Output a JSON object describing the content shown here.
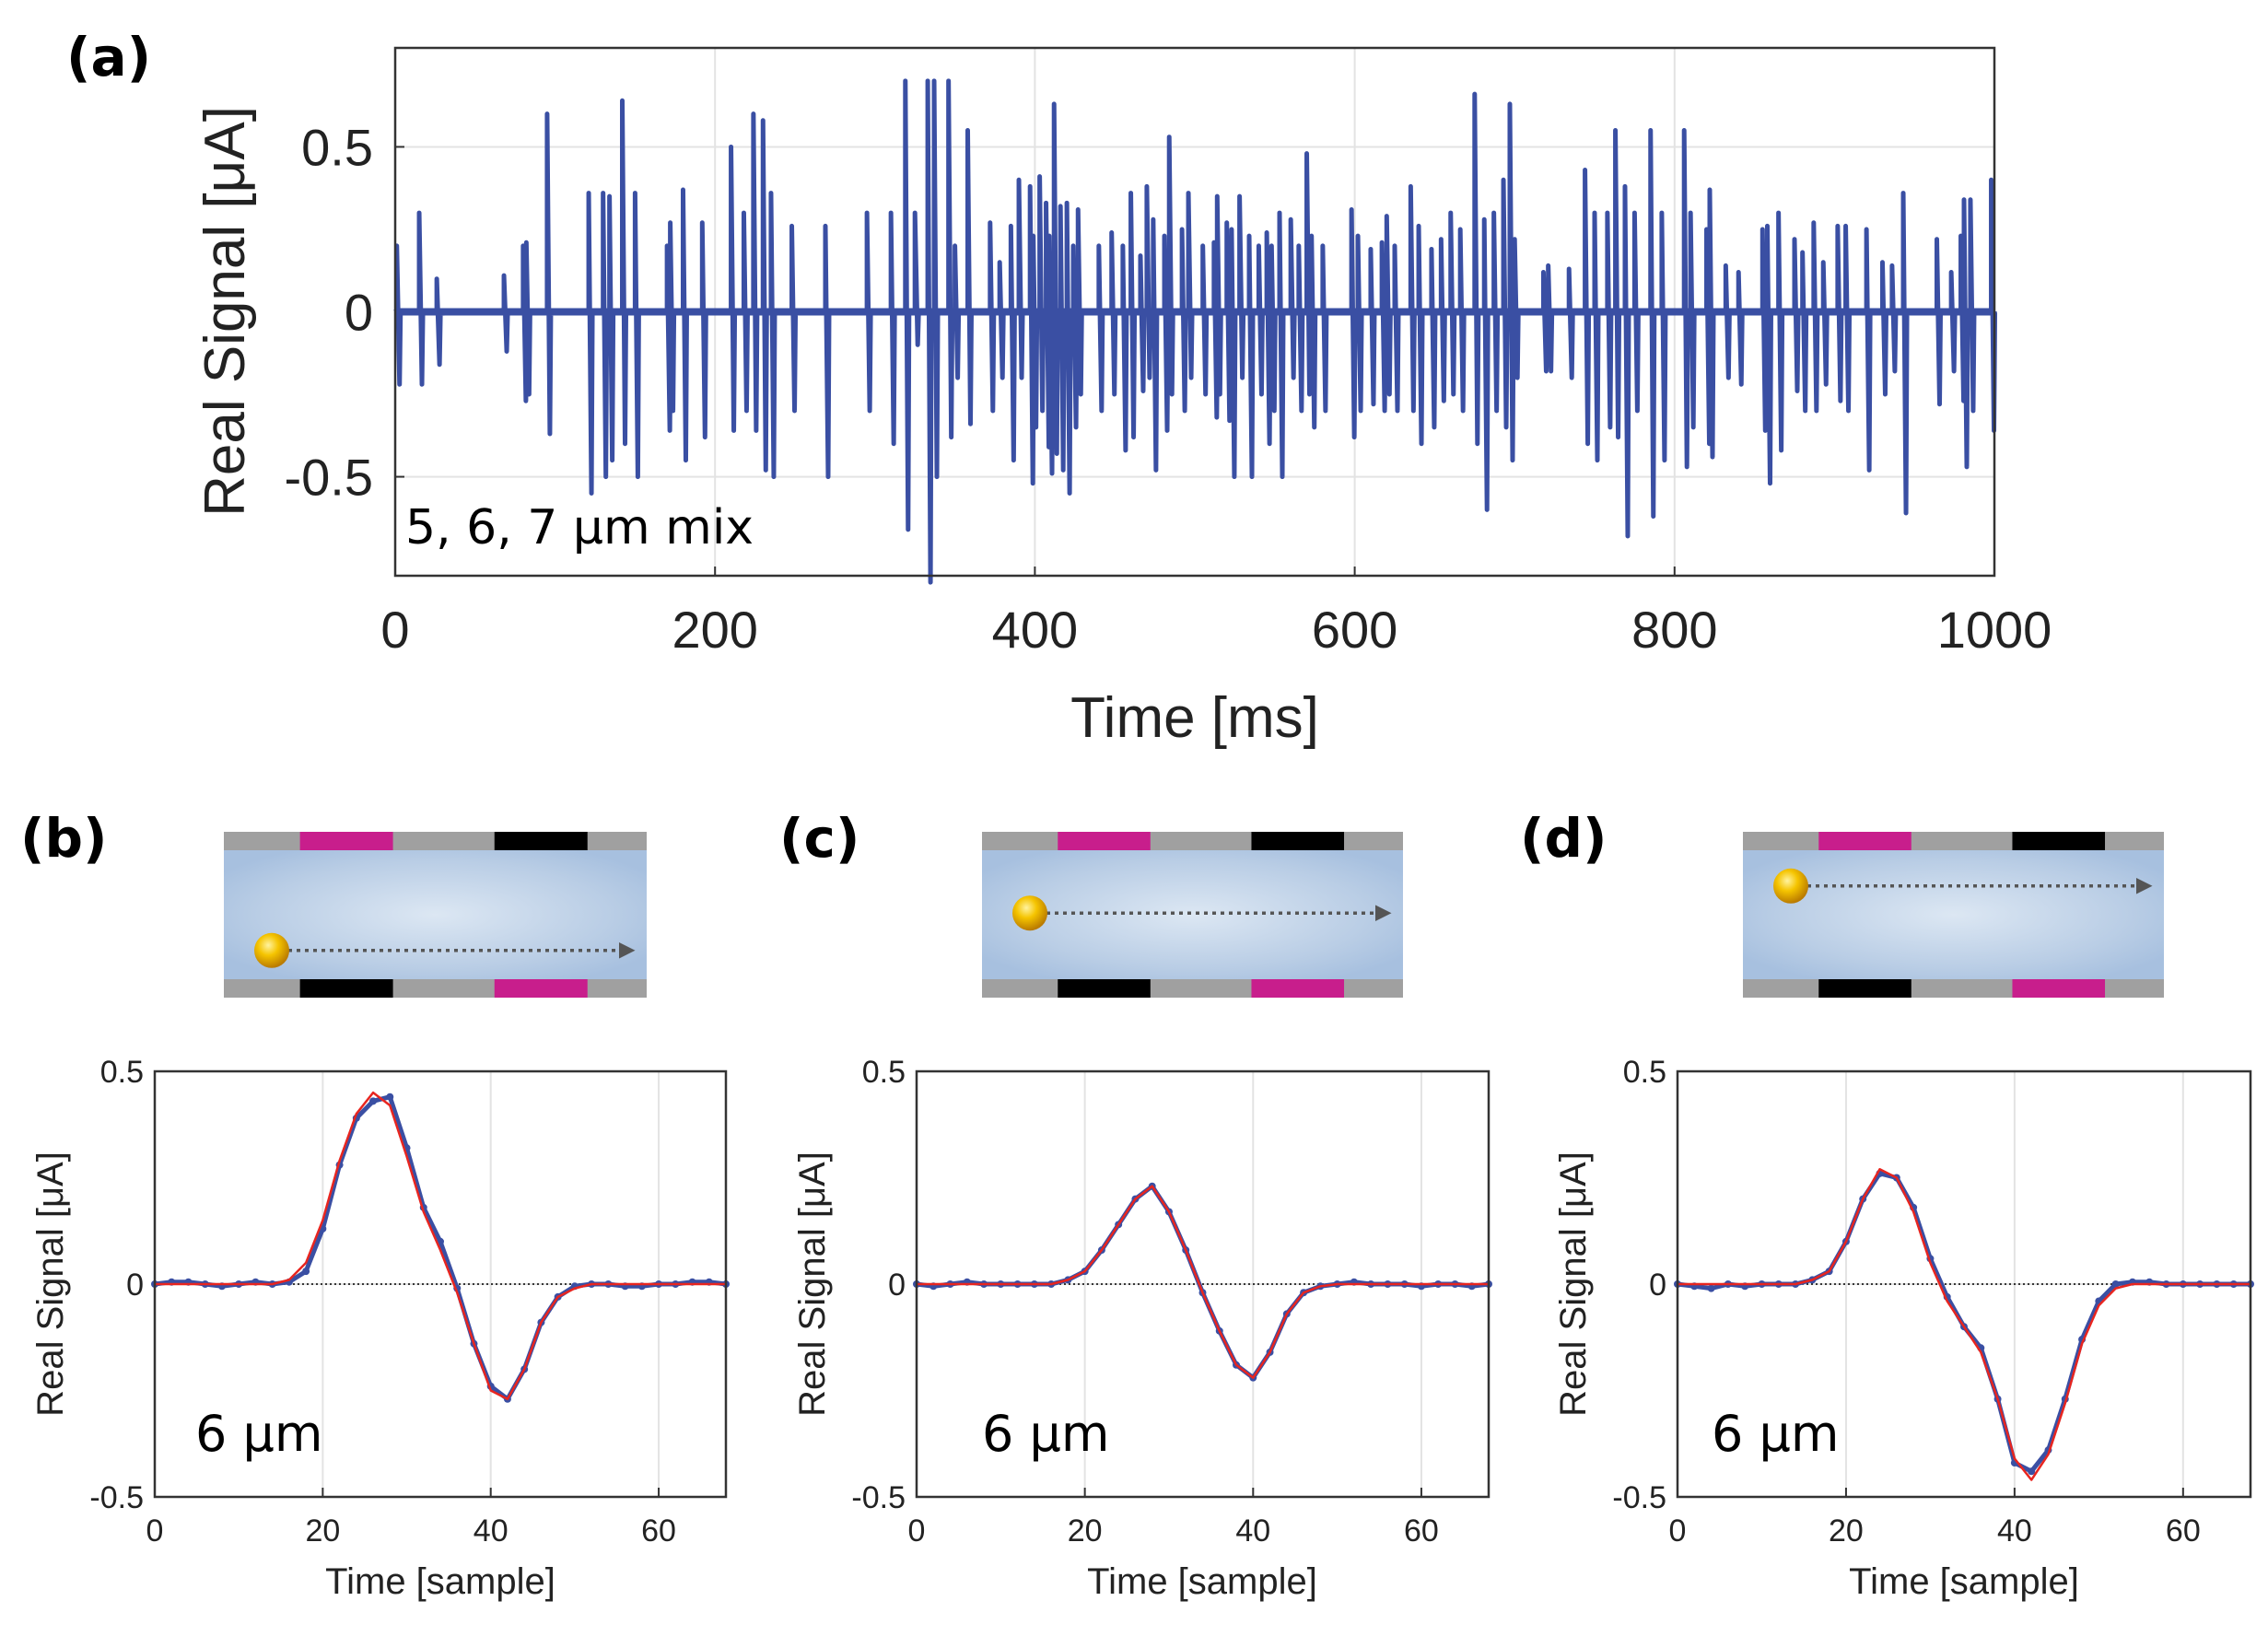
{
  "colors": {
    "signal": "#3a4fa3",
    "fit": "#e8251f",
    "magenta": "#c81e8c",
    "electrode_gray": "#a0a0a0",
    "channel": "#bcd0e6",
    "bead": "#f0b800"
  },
  "chart_data": [
    {
      "id": "a",
      "panel_label": "(a)",
      "type": "line",
      "xlabel": "Time [ms]",
      "ylabel": "Real Signal [μA]",
      "annotation": "5, 6, 7 μm mix",
      "xlim": [
        0,
        1000
      ],
      "ylim": [
        -0.8,
        0.8
      ],
      "xticks": [
        0,
        200,
        400,
        600,
        800,
        1000
      ],
      "xtick_labels": [
        "0",
        "200",
        "400",
        "600",
        "800",
        "1000"
      ],
      "yticks": [
        -0.5,
        0,
        0.5
      ],
      "ytick_labels": [
        "-0.5",
        "0",
        "0.5"
      ],
      "grid": true,
      "series_name": "real signal",
      "events_format": [
        "time_ms",
        "peak_positive_uA",
        "peak_negative_uA"
      ],
      "events": [
        [
          1,
          0.2,
          -0.22
        ],
        [
          15,
          0.3,
          -0.22
        ],
        [
          26,
          0.1,
          -0.16
        ],
        [
          68,
          0.11,
          -0.12
        ],
        [
          80,
          0.2,
          -0.27
        ],
        [
          82,
          0.21,
          -0.25
        ],
        [
          95,
          0.6,
          -0.37
        ],
        [
          121,
          0.36,
          -0.55
        ],
        [
          130,
          0.36,
          -0.5
        ],
        [
          134,
          0.35,
          -0.45
        ],
        [
          142,
          0.64,
          -0.4
        ],
        [
          150,
          0.36,
          -0.5
        ],
        [
          170,
          0.2,
          -0.36
        ],
        [
          172,
          0.27,
          -0.3
        ],
        [
          180,
          0.37,
          -0.45
        ],
        [
          192,
          0.27,
          -0.38
        ],
        [
          210,
          0.5,
          -0.36
        ],
        [
          218,
          0.3,
          -0.3
        ],
        [
          224,
          0.6,
          -0.36
        ],
        [
          230,
          0.58,
          -0.48
        ],
        [
          235,
          0.36,
          -0.5
        ],
        [
          248,
          0.26,
          -0.3
        ],
        [
          269,
          0.26,
          -0.5
        ],
        [
          295,
          0.3,
          -0.3
        ],
        [
          310,
          0.3,
          -0.4
        ],
        [
          319,
          0.7,
          -0.66
        ],
        [
          325,
          0.3,
          -0.1
        ],
        [
          333,
          0.7,
          -0.82
        ],
        [
          337,
          0.7,
          -0.5
        ],
        [
          346,
          0.7,
          -0.38
        ],
        [
          350,
          0.2,
          -0.2
        ],
        [
          358,
          0.55,
          -0.34
        ],
        [
          372,
          0.27,
          -0.3
        ],
        [
          378,
          0.15,
          -0.2
        ],
        [
          385,
          0.26,
          -0.45
        ],
        [
          390,
          0.4,
          -0.2
        ],
        [
          397,
          0.38,
          -0.52
        ],
        [
          399,
          0.23,
          -0.35
        ],
        [
          403,
          0.41,
          -0.3
        ],
        [
          407,
          0.33,
          -0.41
        ],
        [
          409,
          0.23,
          -0.49
        ],
        [
          412,
          0.63,
          -0.43
        ],
        [
          416,
          0.32,
          -0.48
        ],
        [
          420,
          0.33,
          -0.55
        ],
        [
          424,
          0.2,
          -0.35
        ],
        [
          427,
          0.31,
          -0.25
        ],
        [
          440,
          0.2,
          -0.3
        ],
        [
          448,
          0.24,
          -0.25
        ],
        [
          455,
          0.2,
          -0.42
        ],
        [
          460,
          0.36,
          -0.38
        ],
        [
          466,
          0.17,
          -0.24
        ],
        [
          470,
          0.38,
          -0.2
        ],
        [
          474,
          0.28,
          -0.48
        ],
        [
          481,
          0.23,
          -0.36
        ],
        [
          484,
          0.53,
          -0.25
        ],
        [
          492,
          0.25,
          -0.3
        ],
        [
          496,
          0.36,
          -0.2
        ],
        [
          505,
          0.2,
          -0.25
        ],
        [
          512,
          0.21,
          -0.32
        ],
        [
          514,
          0.35,
          -0.25
        ],
        [
          520,
          0.27,
          -0.33
        ],
        [
          523,
          0.25,
          -0.5
        ],
        [
          528,
          0.35,
          -0.2
        ],
        [
          534,
          0.23,
          -0.5
        ],
        [
          540,
          0.2,
          -0.25
        ],
        [
          545,
          0.24,
          -0.4
        ],
        [
          548,
          0.2,
          -0.3
        ],
        [
          553,
          0.3,
          -0.5
        ],
        [
          560,
          0.28,
          -0.2
        ],
        [
          565,
          0.2,
          -0.3
        ],
        [
          570,
          0.48,
          -0.25
        ],
        [
          573,
          0.23,
          -0.35
        ],
        [
          580,
          0.2,
          -0.3
        ],
        [
          598,
          0.31,
          -0.38
        ],
        [
          602,
          0.23,
          -0.3
        ],
        [
          610,
          0.19,
          -0.28
        ],
        [
          617,
          0.21,
          -0.3
        ],
        [
          620,
          0.29,
          -0.25
        ],
        [
          625,
          0.2,
          -0.3
        ],
        [
          635,
          0.38,
          -0.3
        ],
        [
          640,
          0.26,
          -0.4
        ],
        [
          648,
          0.19,
          -0.35
        ],
        [
          654,
          0.22,
          -0.27
        ],
        [
          660,
          0.3,
          -0.25
        ],
        [
          666,
          0.25,
          -0.3
        ],
        [
          675,
          0.66,
          -0.4
        ],
        [
          681,
          0.28,
          -0.6
        ],
        [
          687,
          0.3,
          -0.3
        ],
        [
          693,
          0.4,
          -0.35
        ],
        [
          697,
          0.63,
          -0.45
        ],
        [
          700,
          0.22,
          -0.2
        ],
        [
          718,
          0.12,
          -0.18
        ],
        [
          721,
          0.14,
          -0.18
        ],
        [
          734,
          0.13,
          -0.2
        ],
        [
          744,
          0.43,
          -0.4
        ],
        [
          750,
          0.3,
          -0.45
        ],
        [
          758,
          0.3,
          -0.35
        ],
        [
          763,
          0.55,
          -0.38
        ],
        [
          769,
          0.38,
          -0.68
        ],
        [
          775,
          0.3,
          -0.3
        ],
        [
          785,
          0.55,
          -0.62
        ],
        [
          792,
          0.3,
          -0.45
        ],
        [
          806,
          0.55,
          -0.47
        ],
        [
          810,
          0.3,
          -0.35
        ],
        [
          820,
          0.25,
          -0.4
        ],
        [
          822,
          0.37,
          -0.44
        ],
        [
          832,
          0.14,
          -0.2
        ],
        [
          840,
          0.12,
          -0.22
        ],
        [
          855,
          0.25,
          -0.36
        ],
        [
          858,
          0.26,
          -0.52
        ],
        [
          865,
          0.3,
          -0.42
        ],
        [
          875,
          0.22,
          -0.24
        ],
        [
          880,
          0.18,
          -0.3
        ],
        [
          887,
          0.27,
          -0.3
        ],
        [
          893,
          0.15,
          -0.22
        ],
        [
          902,
          0.26,
          -0.27
        ],
        [
          907,
          0.26,
          -0.3
        ],
        [
          920,
          0.25,
          -0.48
        ],
        [
          930,
          0.15,
          -0.25
        ],
        [
          936,
          0.14,
          -0.18
        ],
        [
          943,
          0.36,
          -0.61
        ],
        [
          964,
          0.22,
          -0.28
        ],
        [
          973,
          0.12,
          -0.18
        ],
        [
          979,
          0.23,
          -0.27
        ],
        [
          981,
          0.34,
          -0.47
        ],
        [
          985,
          0.34,
          -0.3
        ],
        [
          998,
          0.4,
          -0.36
        ]
      ]
    },
    {
      "id": "b",
      "panel_label": "(b)",
      "type": "line",
      "bead_position": "bottom",
      "xlabel": "Time [sample]",
      "ylabel": "Real Signal [μA]",
      "annotation": "6 μm",
      "xlim": [
        0,
        68
      ],
      "ylim": [
        -0.5,
        0.5
      ],
      "xticks": [
        0,
        20,
        40,
        60
      ],
      "xtick_labels": [
        "0",
        "20",
        "40",
        "60"
      ],
      "yticks": [
        -0.5,
        0,
        0.5
      ],
      "ytick_labels": [
        "-0.5",
        "0",
        "0.5"
      ],
      "grid": true,
      "x": [
        0,
        2,
        4,
        6,
        8,
        10,
        12,
        14,
        16,
        18,
        20,
        22,
        24,
        26,
        28,
        30,
        32,
        34,
        36,
        38,
        40,
        42,
        44,
        46,
        48,
        50,
        52,
        54,
        56,
        58,
        60,
        62,
        64,
        66,
        68
      ],
      "series": [
        {
          "name": "measured",
          "values": [
            0,
            0.005,
            0.005,
            0,
            -0.005,
            0,
            0.005,
            0,
            0.005,
            0.03,
            0.13,
            0.28,
            0.39,
            0.43,
            0.44,
            0.32,
            0.18,
            0.1,
            -0.01,
            -0.14,
            -0.24,
            -0.27,
            -0.2,
            -0.09,
            -0.03,
            -0.005,
            0,
            0,
            -0.005,
            -0.005,
            0,
            0,
            0.005,
            0.005,
            0
          ]
        },
        {
          "name": "fit",
          "values": [
            0,
            0,
            0,
            0,
            0,
            0,
            0,
            0,
            0.01,
            0.05,
            0.15,
            0.29,
            0.4,
            0.45,
            0.42,
            0.3,
            0.17,
            0.08,
            -0.02,
            -0.14,
            -0.25,
            -0.27,
            -0.2,
            -0.09,
            -0.03,
            -0.01,
            0,
            0,
            0,
            0,
            0,
            0,
            0,
            0,
            0
          ]
        }
      ]
    },
    {
      "id": "c",
      "panel_label": "(c)",
      "type": "line",
      "bead_position": "middle",
      "xlabel": "Time [sample]",
      "ylabel": "Real Signal [μA]",
      "annotation": "6 μm",
      "xlim": [
        0,
        68
      ],
      "ylim": [
        -0.5,
        0.5
      ],
      "xticks": [
        0,
        20,
        40,
        60
      ],
      "xtick_labels": [
        "0",
        "20",
        "40",
        "60"
      ],
      "yticks": [
        -0.5,
        0,
        0.5
      ],
      "ytick_labels": [
        "-0.5",
        "0",
        "0.5"
      ],
      "grid": true,
      "x": [
        0,
        2,
        4,
        6,
        8,
        10,
        12,
        14,
        16,
        18,
        20,
        22,
        24,
        26,
        28,
        30,
        32,
        34,
        36,
        38,
        40,
        42,
        44,
        46,
        48,
        50,
        52,
        54,
        56,
        58,
        60,
        62,
        64,
        66,
        68
      ],
      "series": [
        {
          "name": "measured",
          "values": [
            0,
            -0.005,
            0,
            0.005,
            0,
            0,
            0,
            0,
            0,
            0.01,
            0.03,
            0.08,
            0.14,
            0.2,
            0.23,
            0.17,
            0.08,
            -0.02,
            -0.11,
            -0.19,
            -0.22,
            -0.16,
            -0.07,
            -0.02,
            -0.005,
            0,
            0.005,
            0,
            0,
            0,
            -0.005,
            0,
            0,
            -0.005,
            0
          ]
        },
        {
          "name": "fit",
          "values": [
            0,
            0,
            0,
            0,
            0,
            0,
            0,
            0,
            0,
            0.01,
            0.03,
            0.08,
            0.14,
            0.2,
            0.23,
            0.17,
            0.08,
            -0.02,
            -0.11,
            -0.19,
            -0.22,
            -0.16,
            -0.07,
            -0.02,
            -0.005,
            0,
            0,
            0,
            0,
            0,
            0,
            0,
            0,
            0,
            0
          ]
        }
      ]
    },
    {
      "id": "d",
      "panel_label": "(d)",
      "type": "line",
      "bead_position": "top",
      "xlabel": "Time [sample]",
      "ylabel": "Real Signal [μA]",
      "annotation": "6 μm",
      "xlim": [
        0,
        68
      ],
      "ylim": [
        -0.5,
        0.5
      ],
      "xticks": [
        0,
        20,
        40,
        60
      ],
      "xtick_labels": [
        "0",
        "20",
        "40",
        "60"
      ],
      "yticks": [
        -0.5,
        0,
        0.5
      ],
      "ytick_labels": [
        "-0.5",
        "0",
        "0.5"
      ],
      "grid": true,
      "x": [
        0,
        2,
        4,
        6,
        8,
        10,
        12,
        14,
        16,
        18,
        20,
        22,
        24,
        26,
        28,
        30,
        32,
        34,
        36,
        38,
        40,
        42,
        44,
        46,
        48,
        50,
        52,
        54,
        56,
        58,
        60,
        62,
        64,
        66,
        68
      ],
      "series": [
        {
          "name": "measured",
          "values": [
            0,
            -0.005,
            -0.01,
            0,
            -0.005,
            0,
            0,
            0,
            0.01,
            0.03,
            0.1,
            0.2,
            0.26,
            0.25,
            0.18,
            0.06,
            -0.03,
            -0.1,
            -0.15,
            -0.27,
            -0.42,
            -0.44,
            -0.39,
            -0.27,
            -0.13,
            -0.04,
            0,
            0.005,
            0.005,
            0,
            0,
            0,
            0,
            0,
            0
          ]
        },
        {
          "name": "fit",
          "values": [
            0,
            0,
            0,
            0,
            0,
            0,
            0,
            0,
            0.01,
            0.03,
            0.1,
            0.2,
            0.27,
            0.25,
            0.17,
            0.05,
            -0.04,
            -0.1,
            -0.16,
            -0.27,
            -0.41,
            -0.46,
            -0.4,
            -0.28,
            -0.14,
            -0.05,
            -0.01,
            0,
            0,
            0,
            0,
            0,
            0,
            0,
            0
          ]
        }
      ]
    }
  ]
}
